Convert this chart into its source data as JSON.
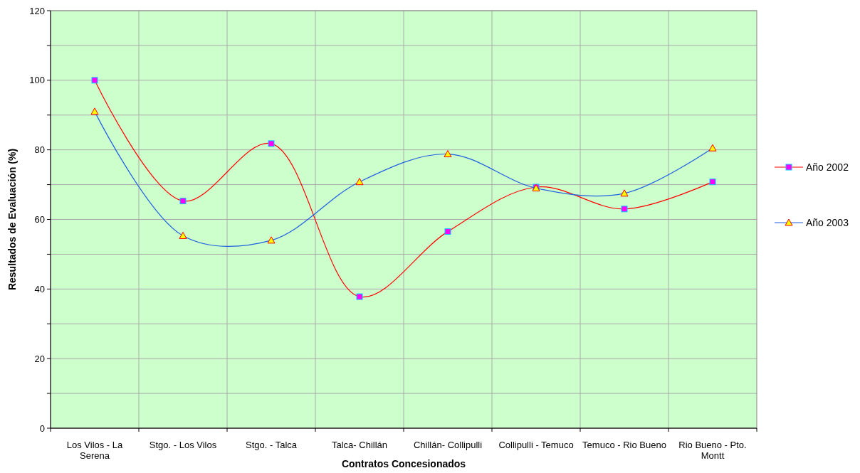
{
  "chart_data": {
    "type": "line",
    "xlabel": "Contratos Concesionados",
    "ylabel": "Resultados de Evaluación (%)",
    "categories": [
      "Los Vilos - La Serena",
      "Stgo. - Los Vilos",
      "Stgo. - Talca",
      "Talca- Chillán",
      "Chillán- Collipulli",
      "Collipulli - Temuco",
      "Temuco - Rio Bueno",
      "Rio Bueno - Pto. Montt"
    ],
    "series": [
      {
        "name": "Año 2002",
        "color": "#ff0000",
        "marker": "square",
        "values": [
          100,
          65.3,
          81.8,
          37.8,
          56.5,
          69.3,
          63,
          70.8
        ]
      },
      {
        "name": "Año 2003",
        "color": "#1f5fe0",
        "marker": "triangle",
        "values": [
          91,
          55.3,
          54,
          70.8,
          78.8,
          69,
          67.5,
          80.5
        ]
      }
    ],
    "ylim": [
      0,
      120
    ],
    "yticks": [
      0,
      {
        "value": 10,
        "label": null
      },
      20,
      {
        "value": 30,
        "label": null
      },
      40,
      {
        "value": 50,
        "label": null
      },
      60,
      {
        "value": 70,
        "label": null
      },
      80,
      {
        "value": 90,
        "label": null
      },
      100,
      {
        "value": 110,
        "label": null
      },
      120
    ],
    "grid": true,
    "legend": "right"
  }
}
